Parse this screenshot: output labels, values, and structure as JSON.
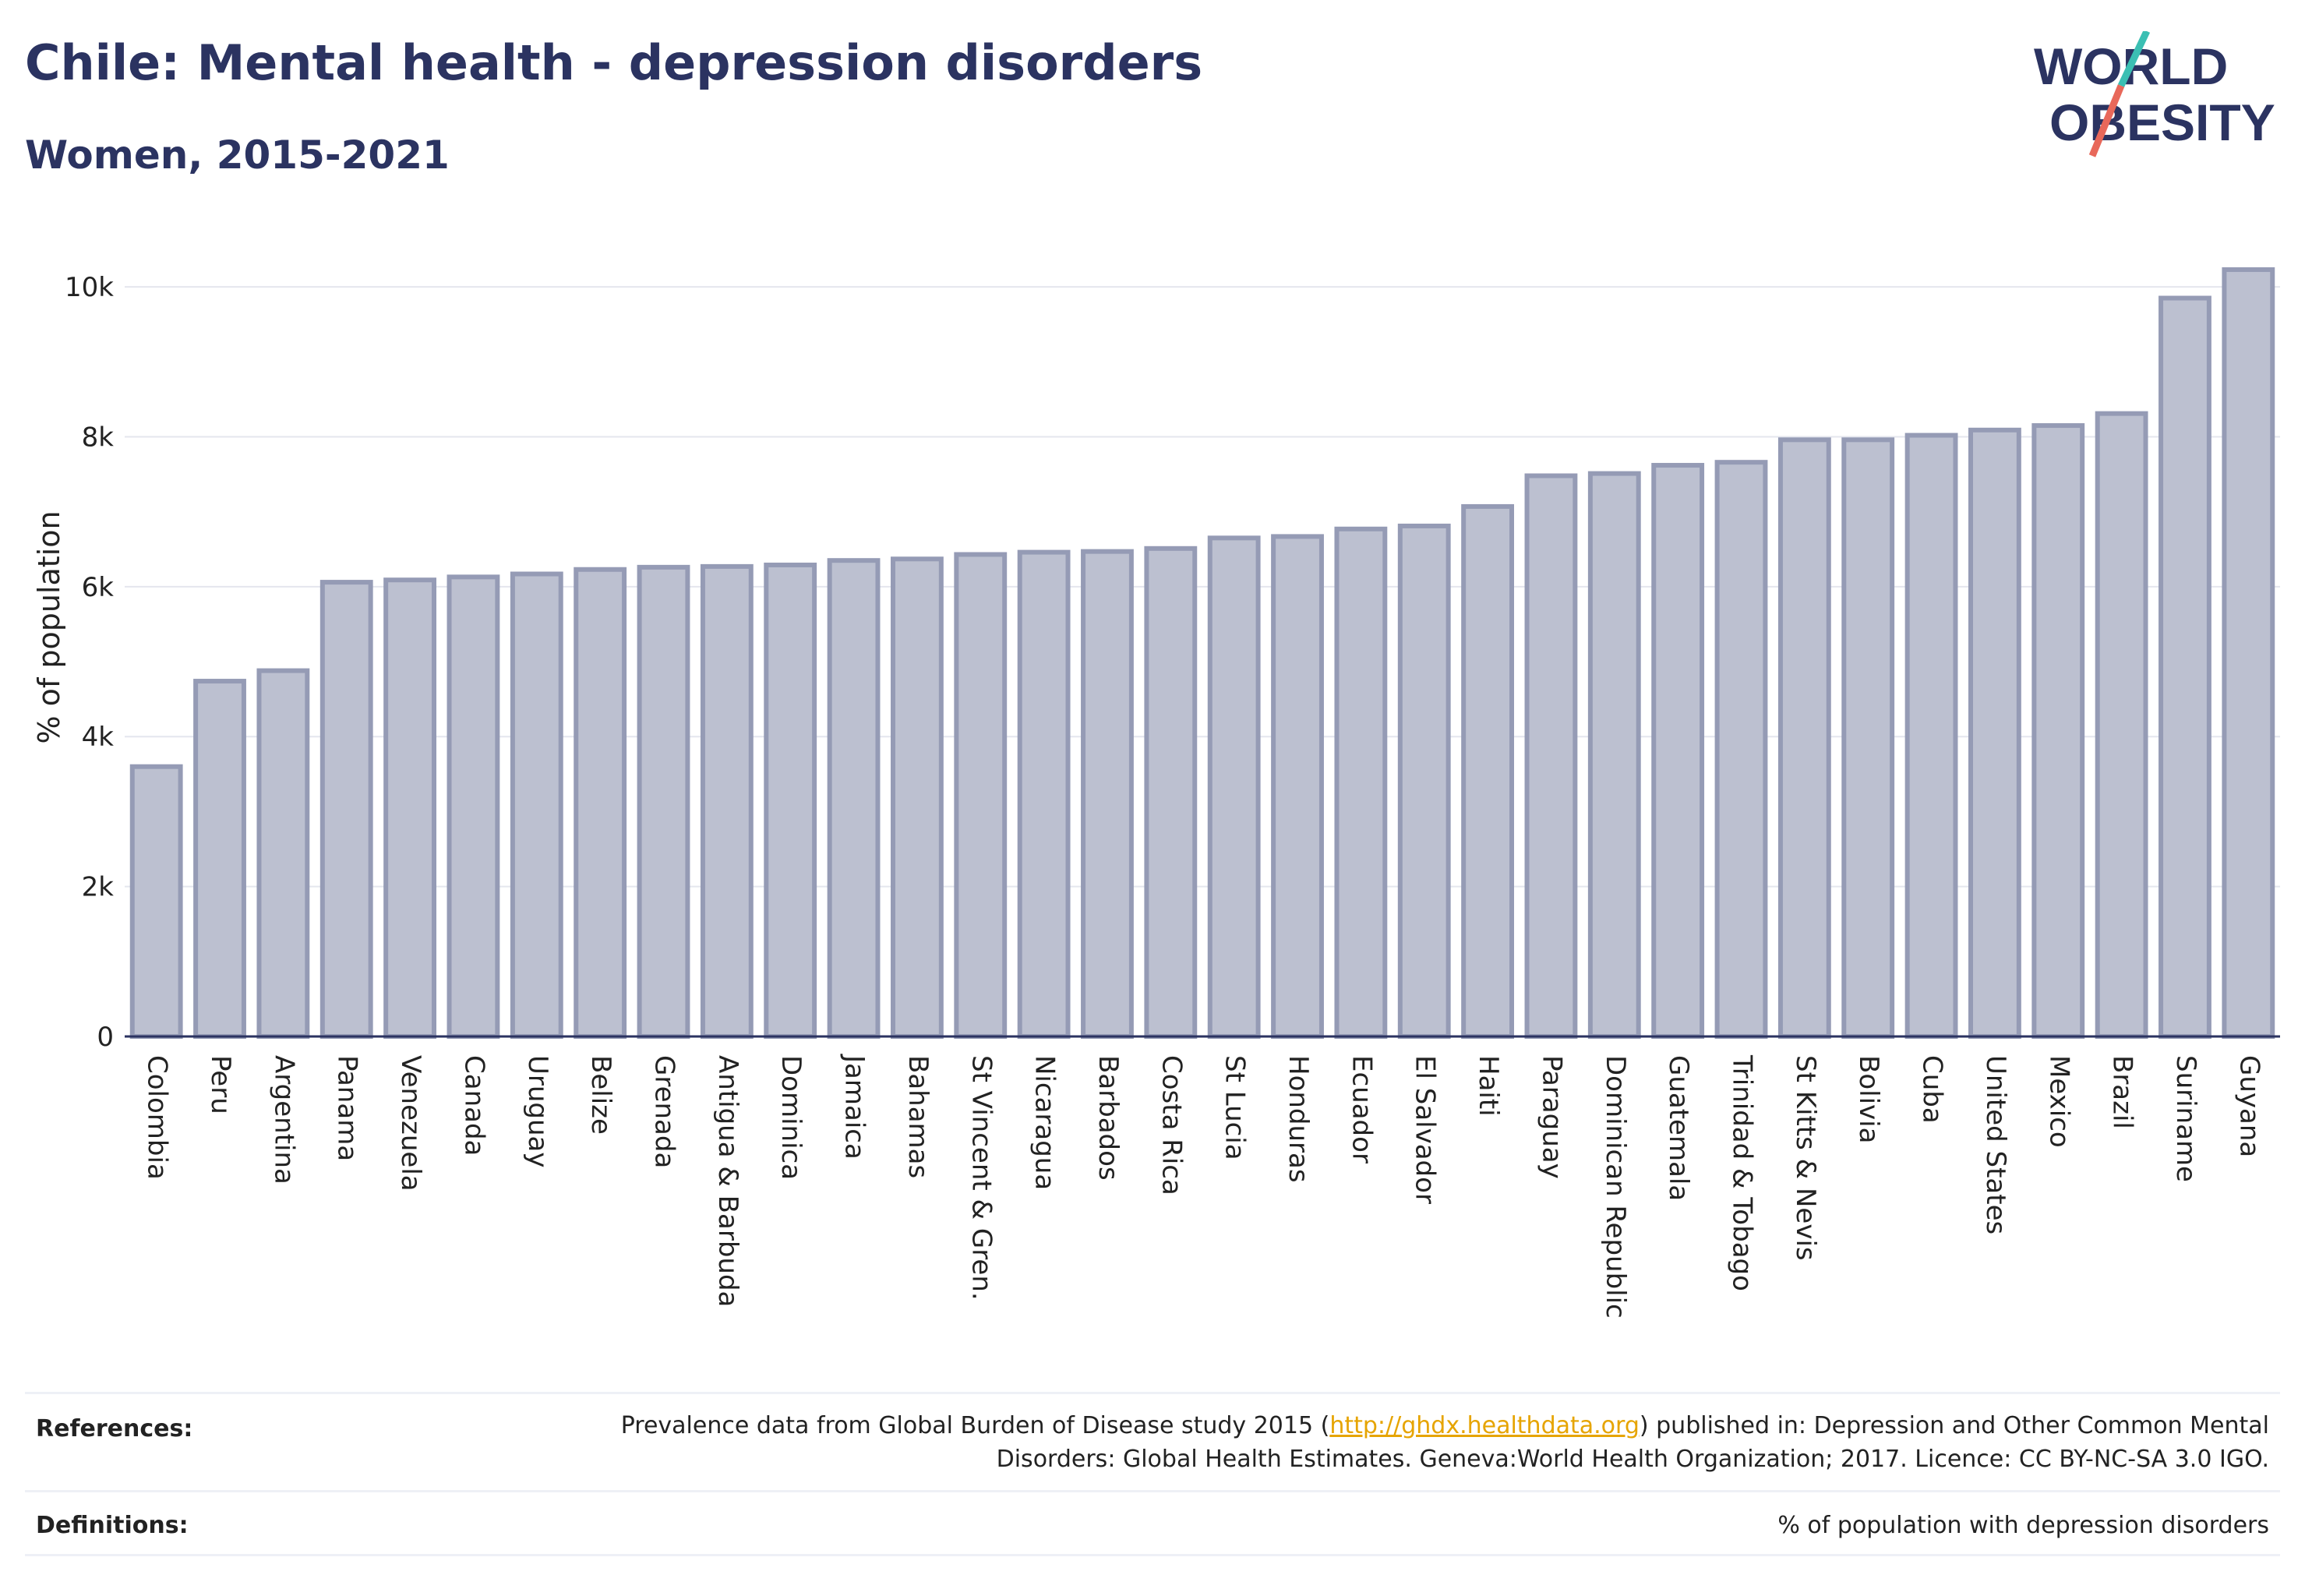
{
  "header": {
    "title": "Chile: Mental health - depression disorders",
    "subtitle": "Women, 2015-2021"
  },
  "logo": {
    "line1": "WORLD",
    "line2": "OBESITY"
  },
  "chart_data": {
    "type": "bar",
    "title": "Chile: Mental health - depression disorders",
    "subtitle": "Women, 2015-2021",
    "xlabel": "",
    "ylabel": "% of population",
    "ylim": [
      0,
      10500
    ],
    "yticks": [
      0,
      2000,
      4000,
      6000,
      8000,
      10000
    ],
    "ytick_labels": [
      "0",
      "2k",
      "4k",
      "6k",
      "8k",
      "10k"
    ],
    "grid": true,
    "bar_color": "#bcc0d0",
    "bar_edge_color": "#959bb5",
    "categories": [
      "Colombia",
      "Peru",
      "Argentina",
      "Panama",
      "Venezuela",
      "Canada",
      "Uruguay",
      "Belize",
      "Grenada",
      "Antigua & Barbuda",
      "Dominica",
      "Jamaica",
      "Bahamas",
      "St Vincent & Gren.",
      "Nicaragua",
      "Barbados",
      "Costa Rica",
      "St Lucia",
      "Honduras",
      "Ecuador",
      "El Salvador",
      "Haiti",
      "Paraguay",
      "Dominican Republic",
      "Guatemala",
      "Trinidad & Tobago",
      "St Kitts & Nevis",
      "Bolivia",
      "Cuba",
      "United States",
      "Mexico",
      "Brazil",
      "Suriname",
      "Guyana"
    ],
    "values": [
      3600,
      4740,
      4880,
      6060,
      6090,
      6130,
      6170,
      6230,
      6260,
      6270,
      6290,
      6350,
      6370,
      6430,
      6460,
      6470,
      6510,
      6650,
      6670,
      6770,
      6810,
      7070,
      7480,
      7510,
      7620,
      7660,
      7960,
      7960,
      8020,
      8090,
      8150,
      8310,
      9850,
      10230
    ]
  },
  "footer": {
    "references_label": "References:",
    "references_pre": "Prevalence data from Global Burden of Disease study 2015 (",
    "references_link": "http://ghdx.healthdata.org",
    "references_post": ") published in: Depression and Other Common Mental Disorders: Global Health Estimates. Geneva:World Health Organization; 2017. Licence: CC BY-NC-SA 3.0 IGO.",
    "definitions_label": "Definitions:",
    "definitions_text": "% of population with depression disorders"
  }
}
